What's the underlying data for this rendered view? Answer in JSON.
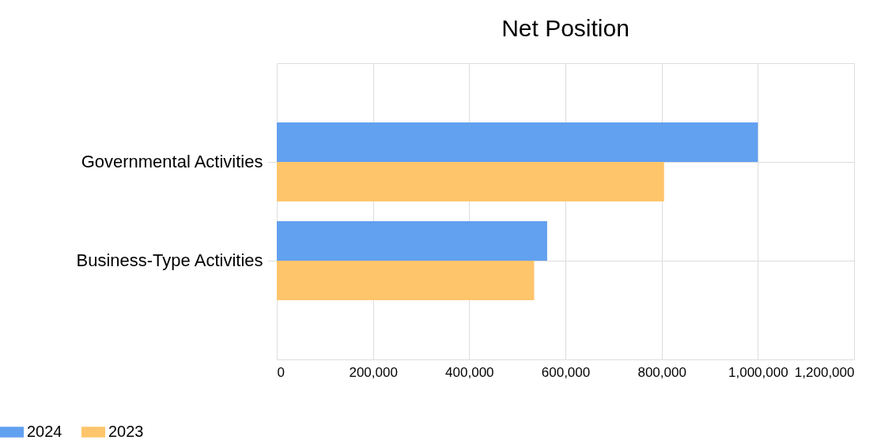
{
  "chart_data": {
    "type": "bar",
    "orientation": "horizontal",
    "title": "Net Position",
    "categories": [
      "Governmental Activities",
      "Business-Type Activities"
    ],
    "series": [
      {
        "name": "2024",
        "color": "#62a0f0",
        "values": [
          1000000,
          562000
        ]
      },
      {
        "name": "2023",
        "color": "#ffc56b",
        "values": [
          805000,
          535000
        ]
      }
    ],
    "xlim": [
      0,
      1200000
    ],
    "xticks": [
      {
        "value": 0,
        "label": "0"
      },
      {
        "value": 200000,
        "label": "200,000"
      },
      {
        "value": 400000,
        "label": "400,000"
      },
      {
        "value": 600000,
        "label": "600,000"
      },
      {
        "value": 800000,
        "label": "800,000"
      },
      {
        "value": 1000000,
        "label": "1,000,000"
      },
      {
        "value": 1200000,
        "label": "1,200,000"
      }
    ],
    "grid": true,
    "legend": "bottom left"
  }
}
